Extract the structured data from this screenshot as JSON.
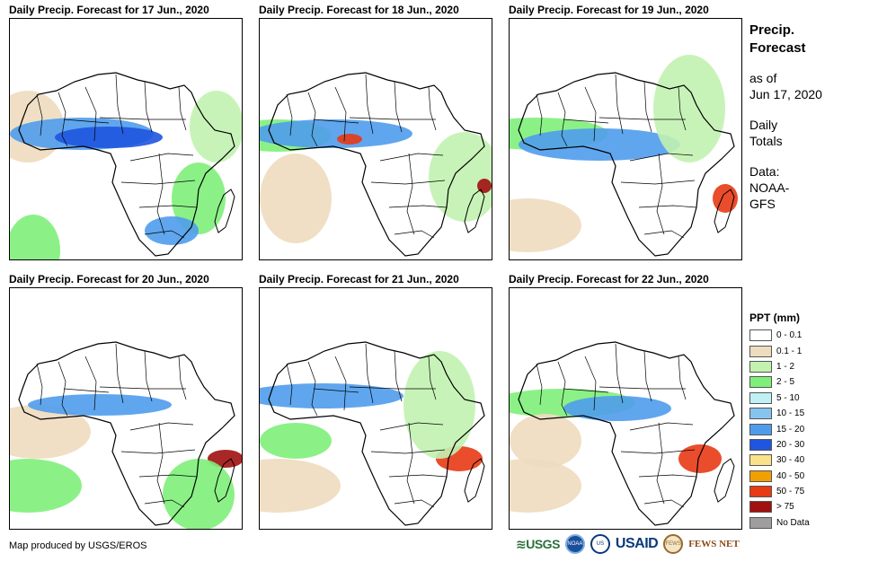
{
  "panels": [
    {
      "title": "Daily Precip. Forecast for 17 Jun., 2020"
    },
    {
      "title": "Daily Precip. Forecast for 18 Jun., 2020"
    },
    {
      "title": "Daily Precip. Forecast for 19 Jun., 2020"
    },
    {
      "title": "Daily Precip. Forecast for 20 Jun., 2020"
    },
    {
      "title": "Daily Precip. Forecast for 21 Jun., 2020"
    },
    {
      "title": "Daily Precip. Forecast for 22 Jun., 2020"
    }
  ],
  "sidebar": {
    "title_line1": "Precip.",
    "title_line2": "Forecast",
    "asof_line1": "as of",
    "asof_line2": "Jun 17, 2020",
    "totals_line1": "Daily",
    "totals_line2": "Totals",
    "data_line1": "Data:",
    "data_line2": "NOAA-",
    "data_line3": "GFS"
  },
  "legend": {
    "title": "PPT (mm)",
    "items": [
      {
        "label": "0 - 0.1",
        "color": "#ffffff"
      },
      {
        "label": "0.1 - 1",
        "color": "#eedcbf"
      },
      {
        "label": "1 - 2",
        "color": "#c2f2b0"
      },
      {
        "label": "2 - 5",
        "color": "#7ef07a"
      },
      {
        "label": "5 - 10",
        "color": "#bff0f4"
      },
      {
        "label": "10 - 15",
        "color": "#86c4f0"
      },
      {
        "label": "15 - 20",
        "color": "#4f9cec"
      },
      {
        "label": "20 - 30",
        "color": "#1f55df"
      },
      {
        "label": "30 - 40",
        "color": "#f8e38a"
      },
      {
        "label": "40 - 50",
        "color": "#f0a000"
      },
      {
        "label": "50 - 75",
        "color": "#e83a14"
      },
      {
        "label": "> 75",
        "color": "#a01010"
      },
      {
        "label": "No Data",
        "color": "#9e9e9e"
      }
    ]
  },
  "credit": "Map produced by USGS/EROS",
  "logos": {
    "usgs": "≋USGS",
    "noaa": "NOAA",
    "usaid_seal": "US",
    "usaid": "USAID",
    "fews_seal": "FEWS",
    "fews": "FEWS NET"
  }
}
